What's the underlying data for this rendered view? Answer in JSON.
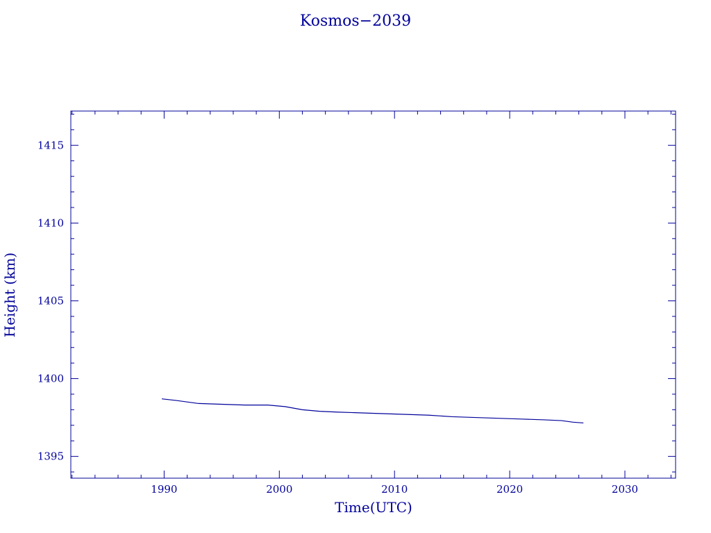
{
  "chart_data": {
    "type": "line",
    "title": "Kosmos−2039",
    "xlabel": "Time(UTC)",
    "ylabel": "Height (km)",
    "xlim": [
      1981.9,
      2034.4
    ],
    "ylim": [
      1393.6,
      1417.2
    ],
    "xticks": [
      1990,
      2000,
      2010,
      2020,
      2030
    ],
    "yticks": [
      1395,
      1400,
      1405,
      1410,
      1415
    ],
    "grid": false,
    "color": "#00009a",
    "series": [
      {
        "x": [
          1989.8,
          1991.0,
          1993.0,
          1995.0,
          1997.0,
          1999.0,
          2000.5,
          2002.0,
          2003.5,
          2005.0,
          2007.0,
          2009.0,
          2011.0,
          2013.0,
          2015.0,
          2017.0,
          2019.0,
          2021.0,
          2023.0,
          2024.5,
          2025.5,
          2026.4
        ],
        "y": [
          1398.7,
          1398.6,
          1398.4,
          1398.35,
          1398.3,
          1398.3,
          1398.2,
          1398.0,
          1397.9,
          1397.85,
          1397.8,
          1397.75,
          1397.7,
          1397.65,
          1397.55,
          1397.5,
          1397.45,
          1397.4,
          1397.35,
          1397.3,
          1397.2,
          1397.15
        ]
      }
    ]
  }
}
